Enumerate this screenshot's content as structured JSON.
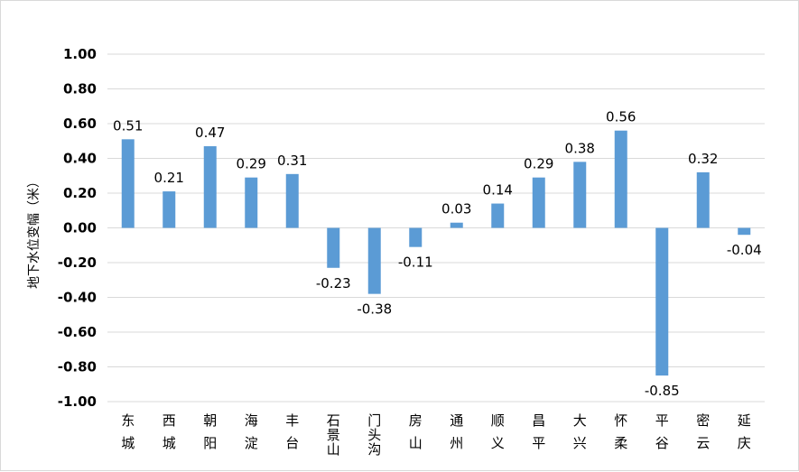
{
  "chart_data": {
    "type": "bar",
    "title": "",
    "xlabel": "",
    "ylabel": "地下水位变幅（米）",
    "ylim": [
      -1.0,
      1.0
    ],
    "yticks": [
      1.0,
      0.8,
      0.6,
      0.4,
      0.2,
      0.0,
      -0.2,
      -0.4,
      -0.6,
      -0.8,
      -1.0
    ],
    "ytick_labels": [
      "1.00",
      "0.80",
      "0.60",
      "0.40",
      "0.20",
      "0.00",
      "-0.20",
      "-0.40",
      "-0.60",
      "-0.80",
      "-1.00"
    ],
    "grid": true,
    "legend": false,
    "bar_color": "#5b9bd5",
    "categories": [
      "东城",
      "西城",
      "朝阳",
      "海淀",
      "丰台",
      "石景山",
      "门头沟",
      "房山",
      "通州",
      "顺义",
      "昌平",
      "大兴",
      "怀柔",
      "平谷",
      "密云",
      "延庆"
    ],
    "values": [
      0.51,
      0.21,
      0.47,
      0.29,
      0.31,
      -0.23,
      -0.38,
      -0.11,
      0.03,
      0.14,
      0.29,
      0.38,
      0.56,
      -0.85,
      0.32,
      -0.04
    ],
    "data_labels": [
      "0.51",
      "0.21",
      "0.47",
      "0.29",
      "0.31",
      "-0.23",
      "-0.38",
      "-0.11",
      "0.03",
      "0.14",
      "0.29",
      "0.38",
      "0.56",
      "-0.85",
      "0.32",
      "-0.04"
    ]
  }
}
